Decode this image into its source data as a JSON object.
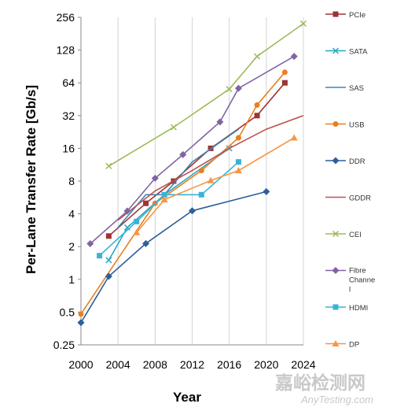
{
  "chart_data": {
    "type": "line",
    "xlabel": "Year",
    "ylabel": "Per-Lane Transfer Rate [Gb/s]",
    "xlim": [
      2000,
      2024
    ],
    "ylim": [
      0.25,
      256
    ],
    "y_scale": "log2",
    "x_ticks": [
      "2000",
      "2004",
      "2008",
      "2012",
      "2016",
      "2020",
      "2024"
    ],
    "y_ticks": [
      "0.25",
      "0.5",
      "1",
      "2",
      "4",
      "8",
      "16",
      "32",
      "64",
      "128",
      "256"
    ],
    "grid": "vertical",
    "legend_position": "right",
    "series": [
      {
        "name": "PCIe",
        "color": "#9e3333",
        "marker": "square",
        "x": [
          2003,
          2007,
          2010,
          2014,
          2019,
          2022
        ],
        "y": [
          2.5,
          5,
          8,
          16,
          32,
          64
        ]
      },
      {
        "name": "SATA",
        "color": "#2aa8c4",
        "marker": "x",
        "x": [
          2003,
          2005,
          2009,
          2016
        ],
        "y": [
          1.5,
          3,
          6,
          16
        ]
      },
      {
        "name": "SAS",
        "color": "#3d86b5",
        "marker": "none",
        "x": [
          2004,
          2007,
          2009,
          2012,
          2017
        ],
        "y": [
          3,
          6,
          6,
          12,
          24
        ]
      },
      {
        "name": "USB",
        "color": "#e8801f",
        "marker": "circle",
        "x": [
          2000,
          2008,
          2013,
          2017,
          2019,
          2022
        ],
        "y": [
          0.48,
          5,
          10,
          20,
          40,
          80
        ]
      },
      {
        "name": "DDR",
        "color": "#2d5f9a",
        "marker": "diamond",
        "x": [
          2000,
          2003,
          2007,
          2012,
          2020
        ],
        "y": [
          0.4,
          1.066,
          2.133,
          4.266,
          6.4
        ]
      },
      {
        "name": "GDDR",
        "color": "#c0504d",
        "marker": "none",
        "x": [
          2004,
          2008,
          2012,
          2016,
          2020,
          2024
        ],
        "y": [
          3.5,
          6.5,
          10,
          16,
          24,
          32
        ]
      },
      {
        "name": "CEI",
        "color": "#9bbb59",
        "marker": "x",
        "x": [
          2003,
          2010,
          2016,
          2019,
          2024
        ],
        "y": [
          11,
          25,
          56,
          112,
          224
        ]
      },
      {
        "name": "Fibre Channel",
        "color": "#8064a2",
        "marker": "diamond",
        "x": [
          2001,
          2005,
          2008,
          2011,
          2015,
          2017,
          2023
        ],
        "y": [
          2.125,
          4.25,
          8.5,
          14,
          28,
          57,
          112
        ]
      },
      {
        "name": "HDMI",
        "color": "#3ab2d6",
        "marker": "square",
        "x": [
          2002,
          2006,
          2009,
          2013,
          2017
        ],
        "y": [
          1.65,
          3.4,
          6,
          6,
          12
        ]
      },
      {
        "name": "DP",
        "color": "#f79646",
        "marker": "triangle",
        "x": [
          2006,
          2009,
          2014,
          2017,
          2023
        ],
        "y": [
          2.7,
          5.4,
          8.1,
          10,
          20
        ]
      }
    ]
  },
  "watermark": {
    "chinese": "嘉峪检测网",
    "english": "AnyTesting.com"
  }
}
